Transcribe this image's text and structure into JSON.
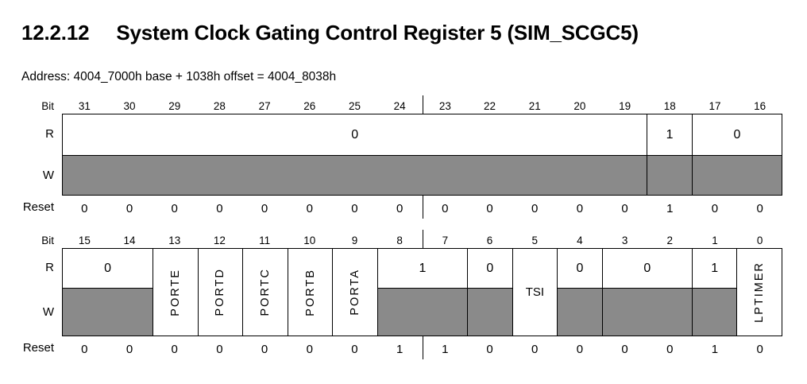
{
  "header": {
    "section_number": "12.2.12",
    "title": "System Clock Gating Control Register 5 (SIM_SCGC5)",
    "address_line": "Address: 4004_7000h base + 1038h offset = 4004_8038h"
  },
  "row_labels": {
    "bit": "Bit",
    "read": "R",
    "write": "W",
    "reset": "Reset"
  },
  "colors": {
    "write_shade": "#8a8a8a",
    "line": "#000000",
    "page_background": "#ffffff",
    "text": "#000000"
  },
  "register": {
    "name": "SIM_SCGC5",
    "high_word": {
      "bit_numbers": [
        "31",
        "30",
        "29",
        "28",
        "27",
        "26",
        "25",
        "24",
        "23",
        "22",
        "21",
        "20",
        "19",
        "18",
        "17",
        "16"
      ],
      "fields": [
        {
          "id": "reserved-31-19",
          "bits": "31-19",
          "access": "read-only",
          "read_value": "0"
        },
        {
          "id": "reserved-18",
          "bits": "18",
          "access": "read-only",
          "read_value": "1"
        },
        {
          "id": "reserved-17-16",
          "bits": "17-16",
          "access": "read-only",
          "read_value": "0"
        }
      ],
      "reset_values": [
        "0",
        "0",
        "0",
        "0",
        "0",
        "0",
        "0",
        "0",
        "0",
        "0",
        "0",
        "0",
        "0",
        "1",
        "0",
        "0"
      ]
    },
    "low_word": {
      "bit_numbers": [
        "15",
        "14",
        "13",
        "12",
        "11",
        "10",
        "9",
        "8",
        "7",
        "6",
        "5",
        "4",
        "3",
        "2",
        "1",
        "0"
      ],
      "fields": [
        {
          "id": "reserved-15-14",
          "bits": "15-14",
          "access": "read-only",
          "read_value": "0"
        },
        {
          "id": "porte",
          "bits": "13",
          "access": "read-write",
          "label": "PORTE"
        },
        {
          "id": "portd",
          "bits": "12",
          "access": "read-write",
          "label": "PORTD"
        },
        {
          "id": "portc",
          "bits": "11",
          "access": "read-write",
          "label": "PORTC"
        },
        {
          "id": "portb",
          "bits": "10",
          "access": "read-write",
          "label": "PORTB"
        },
        {
          "id": "porta",
          "bits": "9",
          "access": "read-write",
          "label": "PORTA"
        },
        {
          "id": "reserved-8-7",
          "bits": "8-7",
          "access": "read-only",
          "read_value": "1"
        },
        {
          "id": "reserved-6",
          "bits": "6",
          "access": "read-only",
          "read_value": "0"
        },
        {
          "id": "tsi",
          "bits": "5",
          "access": "read-write",
          "label": "TSI"
        },
        {
          "id": "reserved-4",
          "bits": "4",
          "access": "read-only",
          "read_value": "0"
        },
        {
          "id": "reserved-3-2",
          "bits": "3-2",
          "access": "read-only",
          "read_value": "0"
        },
        {
          "id": "reserved-1",
          "bits": "1",
          "access": "read-only",
          "read_value": "1"
        },
        {
          "id": "lptimer",
          "bits": "0",
          "access": "read-write",
          "label": "LPTIMER"
        }
      ],
      "reset_values": [
        "0",
        "0",
        "0",
        "0",
        "0",
        "0",
        "0",
        "1",
        "1",
        "0",
        "0",
        "0",
        "0",
        "0",
        "1",
        "0"
      ]
    }
  }
}
